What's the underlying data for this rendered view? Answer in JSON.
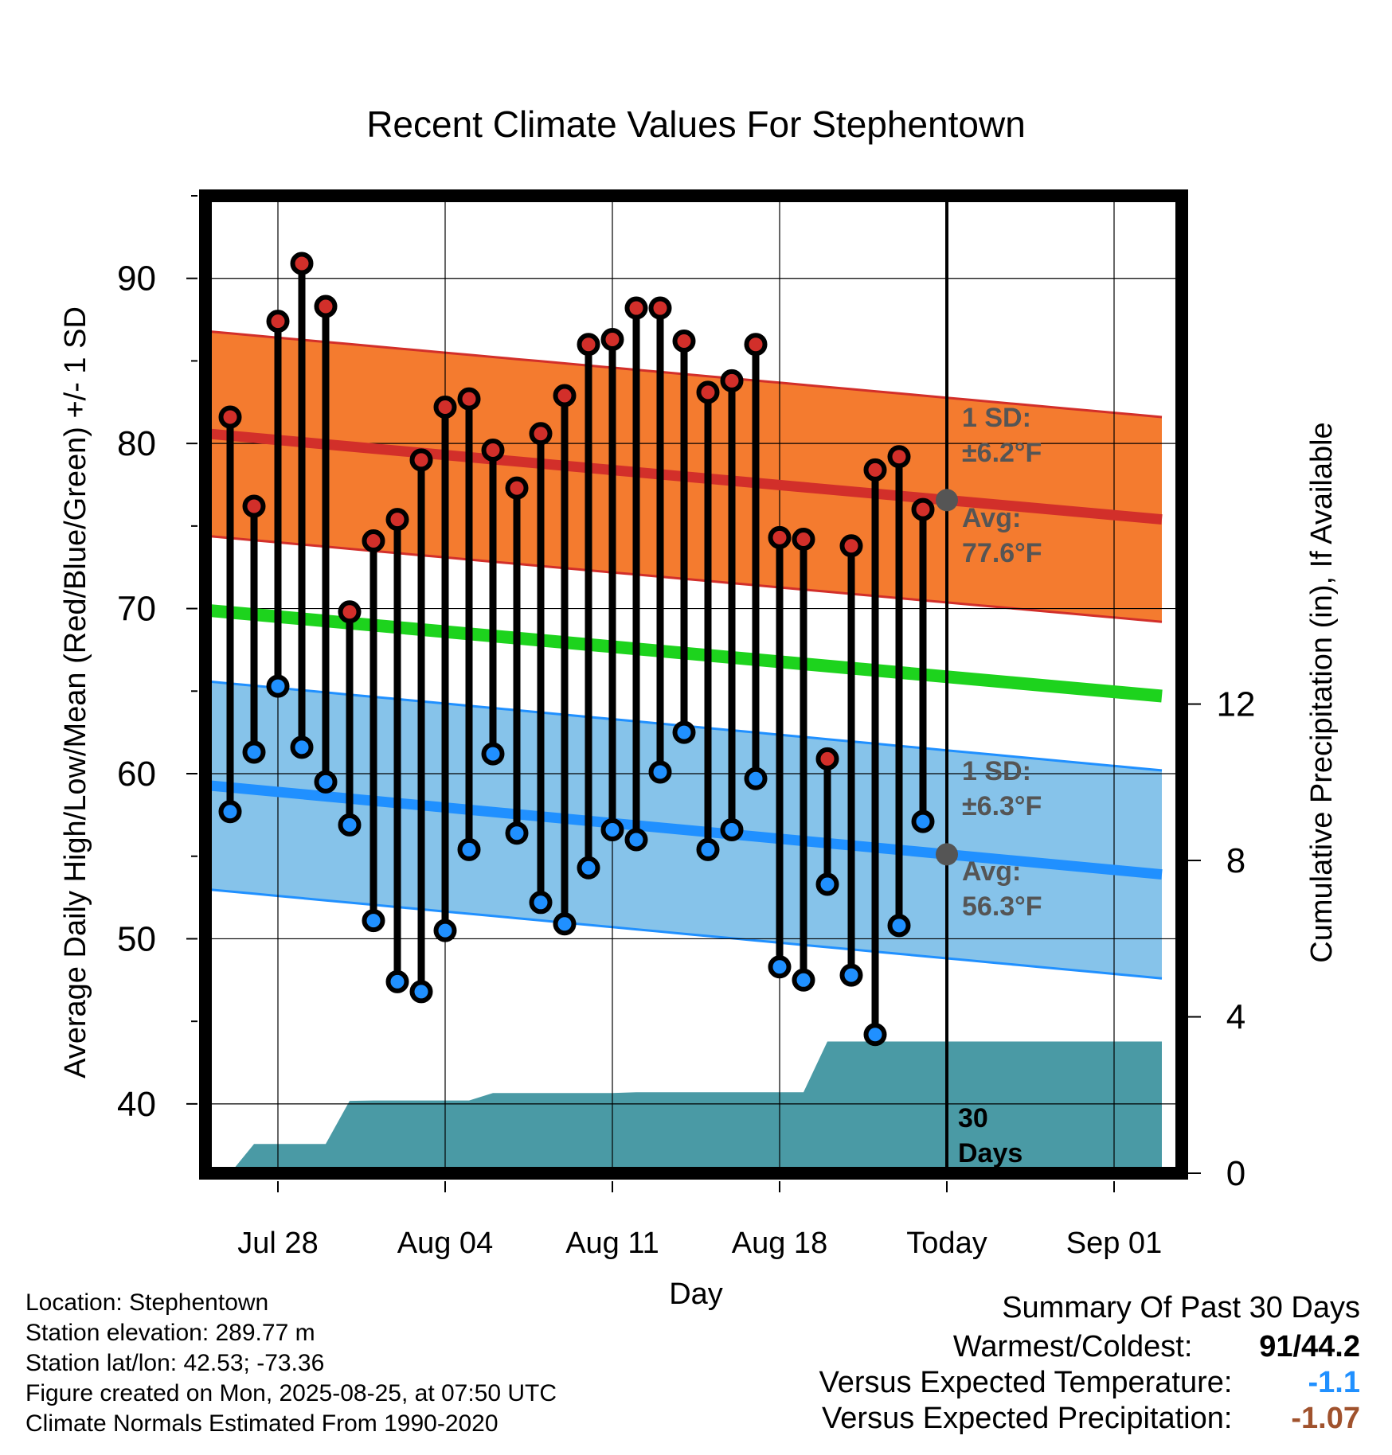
{
  "chart_data": {
    "type": "line",
    "title": "Recent Climate Values For Stephentown",
    "xlabel": "Day",
    "ylabel_left": "Average Daily High/Low/Mean (Red/Blue/Green) +/- 1 SD",
    "ylabel_right": "Cumulative Precipitation (in), If Available",
    "x_ticks": [
      "Jul 28",
      "Aug 04",
      "Aug 11",
      "Aug 18",
      "Today",
      "Sep 01"
    ],
    "y_left_ticks": [
      40,
      50,
      60,
      70,
      80,
      90
    ],
    "y_right_ticks": [
      0,
      4,
      8,
      12
    ],
    "y_left_range": [
      35.8,
      95
    ],
    "y_right_range": [
      0,
      25
    ],
    "grid": true,
    "dates": [
      "2025-07-26",
      "2025-07-27",
      "2025-07-28",
      "2025-07-29",
      "2025-07-30",
      "2025-07-31",
      "2025-08-01",
      "2025-08-02",
      "2025-08-03",
      "2025-08-04",
      "2025-08-05",
      "2025-08-06",
      "2025-08-07",
      "2025-08-08",
      "2025-08-09",
      "2025-08-10",
      "2025-08-11",
      "2025-08-12",
      "2025-08-13",
      "2025-08-14",
      "2025-08-15",
      "2025-08-16",
      "2025-08-17",
      "2025-08-18",
      "2025-08-19",
      "2025-08-20",
      "2025-08-21",
      "2025-08-22",
      "2025-08-23",
      "2025-08-24"
    ],
    "daily_high": [
      81.6,
      76.2,
      87.4,
      90.9,
      88.3,
      69.8,
      74.1,
      75.4,
      79.0,
      82.2,
      82.7,
      79.6,
      77.3,
      80.6,
      82.9,
      86.0,
      86.3,
      88.2,
      88.2,
      86.2,
      83.1,
      83.8,
      86.0,
      74.3,
      74.2,
      60.9,
      73.8,
      78.4,
      79.2,
      76.0
    ],
    "daily_low": [
      57.7,
      61.3,
      65.3,
      61.6,
      59.5,
      56.9,
      51.1,
      47.4,
      46.8,
      50.5,
      55.4,
      61.2,
      56.4,
      52.2,
      50.9,
      54.3,
      56.6,
      56.0,
      60.1,
      62.5,
      55.4,
      56.6,
      59.7,
      48.3,
      47.5,
      53.3,
      47.8,
      44.2,
      50.8,
      57.1
    ],
    "normal_dates": [
      "2025-07-25",
      "2025-09-03"
    ],
    "normal_high": [
      80.6,
      75.4
    ],
    "normal_high_sd": 6.2,
    "normal_low": [
      59.3,
      53.9
    ],
    "normal_low_sd": 6.3,
    "normal_mean": [
      69.9,
      64.7
    ],
    "precip_dates": [
      "2025-07-26",
      "2025-07-27",
      "2025-07-28",
      "2025-07-29",
      "2025-07-30",
      "2025-07-31",
      "2025-08-01",
      "2025-08-02",
      "2025-08-03",
      "2025-08-04",
      "2025-08-05",
      "2025-08-06",
      "2025-08-07",
      "2025-08-08",
      "2025-08-09",
      "2025-08-10",
      "2025-08-11",
      "2025-08-12",
      "2025-08-13",
      "2025-08-14",
      "2025-08-15",
      "2025-08-16",
      "2025-08-17",
      "2025-08-18",
      "2025-08-19",
      "2025-08-20",
      "2025-08-21",
      "2025-08-22",
      "2025-08-23",
      "2025-08-24",
      "2025-08-25",
      "2025-09-03"
    ],
    "cumulative_precip": [
      0.0,
      0.75,
      0.75,
      0.75,
      0.75,
      1.85,
      1.86,
      1.86,
      1.86,
      1.86,
      1.86,
      2.05,
      2.05,
      2.05,
      2.05,
      2.05,
      2.05,
      2.07,
      2.07,
      2.07,
      2.07,
      2.07,
      2.07,
      2.07,
      2.07,
      3.37,
      3.37,
      3.37,
      3.37,
      3.37,
      3.37,
      3.37
    ],
    "annotations": {
      "high_sd_label": "1 SD:",
      "high_sd_value": "±6.2°F",
      "high_avg_label": "Avg:",
      "high_avg_value": "77.6°F",
      "low_sd_label": "1 SD:",
      "low_sd_value": "±6.3°F",
      "low_avg_label": "Avg:",
      "low_avg_value": "56.3°F",
      "precip_days_1": "30",
      "precip_days_2": "Days"
    },
    "colors": {
      "high_band": "#f47b2f",
      "high_line": "#d22f2a",
      "mean_line": "#1dd31d",
      "low_band": "#86c3ea",
      "low_line": "#2090ff",
      "precip": "#4a9aa5",
      "annotation": "#555555"
    }
  },
  "info": {
    "location": "Location: Stephentown",
    "elevation": "Station elevation: 289.77 m",
    "latlon": "Station lat/lon: 42.53; -73.36",
    "created": "Figure created on Mon, 2025-08-25, at 07:50 UTC",
    "normals": "Climate Normals Estimated From 1990-2020"
  },
  "summary": {
    "title": "Summary Of Past 30 Days",
    "warmest_label": "Warmest/Coldest:",
    "warmest_value": "91/44.2",
    "temp_label": "Versus Expected Temperature:",
    "temp_value": "-1.1",
    "temp_color": "#2090ff",
    "precip_label": "Versus Expected Precipitation:",
    "precip_value": "-1.07",
    "precip_color": "#a0522d"
  }
}
